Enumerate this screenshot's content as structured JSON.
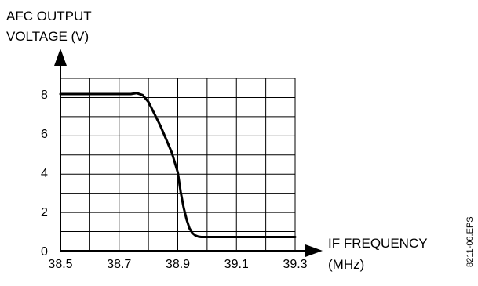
{
  "chart_data": {
    "type": "line",
    "ylabel_lines": [
      "AFC OUTPUT",
      "VOLTAGE (V)"
    ],
    "xlabel_lines": [
      "IF FREQUENCY",
      "(MHz)"
    ],
    "figure_id": "8211-06.EPS",
    "xlim": [
      38.5,
      39.3
    ],
    "ylim": [
      0,
      8.8
    ],
    "x_ticks": [
      "38.5",
      "38.7",
      "38.9",
      "39.1",
      "39.3"
    ],
    "y_ticks": [
      "0",
      "2",
      "4",
      "6",
      "8"
    ],
    "grid": true,
    "series": [
      {
        "x": [
          38.5,
          38.7,
          38.74,
          38.76,
          38.78,
          38.8,
          38.82,
          38.84,
          38.86,
          38.88,
          38.9,
          38.91,
          38.92,
          38.93,
          38.94,
          38.95,
          38.96,
          38.97,
          38.98,
          39.0,
          39.1,
          39.3
        ],
        "y": [
          8.0,
          8.0,
          8.0,
          8.05,
          7.95,
          7.6,
          7.0,
          6.4,
          5.7,
          5.0,
          4.0,
          3.0,
          2.2,
          1.6,
          1.15,
          0.9,
          0.78,
          0.72,
          0.7,
          0.7,
          0.7,
          0.7
        ]
      }
    ]
  },
  "colors": {
    "line": "#000000",
    "grid": "#000000",
    "background": "#ffffff"
  }
}
